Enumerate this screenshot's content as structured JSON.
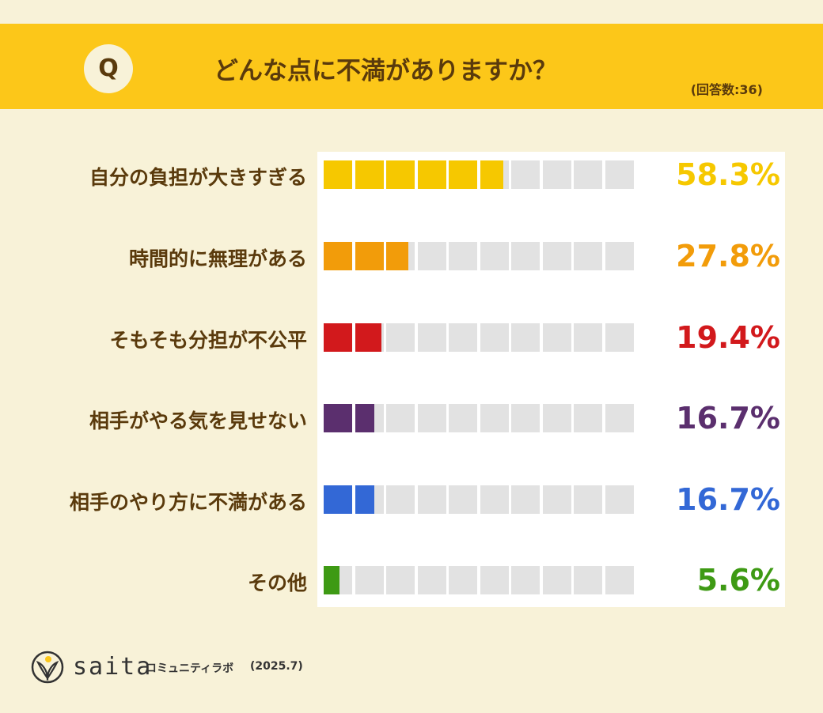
{
  "header": {
    "badge": "Q",
    "question": "どんな点に不満がありますか？",
    "respondents": "(回答数:36)"
  },
  "chart_data": {
    "type": "bar",
    "title": "どんな点に不満がありますか？",
    "note": "(回答数:36)",
    "segments": 10,
    "xlim": [
      0,
      100
    ],
    "categories": [
      "自分の負担が大きすぎる",
      "時間的に無理がある",
      "そもそも分担が不公平",
      "相手がやる気を見せない",
      "相手のやり方に不満がある",
      "その他"
    ],
    "values": [
      58.3,
      27.8,
      19.4,
      16.7,
      16.7,
      5.6
    ],
    "value_labels": [
      "58.3%",
      "27.8%",
      "19.4%",
      "16.7%",
      "16.7%",
      "5.6%"
    ],
    "colors": [
      "#f6c800",
      "#f29c0a",
      "#d2191c",
      "#5b2f6e",
      "#3368d6",
      "#3e9a14"
    ]
  },
  "footer": {
    "brand": "saita",
    "subtitle": "コミュニティラボ",
    "date": "(2025.7)",
    "logo_icon": "leaf-icon"
  }
}
